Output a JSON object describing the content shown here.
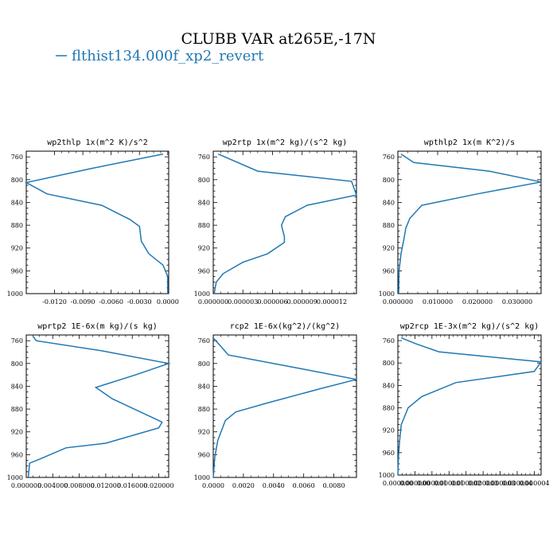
{
  "figure": {
    "title": "CLUBB VAR at265E,-17N",
    "legend_label": "flthist134.000f_xp2_revert",
    "line_color": "#1f77b4"
  },
  "chart_data": [
    {
      "type": "line",
      "title": "wp2thlp  1x(m^2 K)/s^2",
      "xlim": [
        -0.015,
        0.0001
      ],
      "ylim": [
        1000,
        750
      ],
      "xticks": [
        -0.012,
        -0.009,
        -0.006,
        -0.003,
        0.0
      ],
      "xtick_labels": [
        "-0.0120",
        "-0.0090",
        "-0.0060",
        "-0.0030",
        "0.0000"
      ],
      "yticks": [
        760,
        800,
        840,
        880,
        920,
        960,
        1000
      ],
      "x": [
        -0.0005,
        -0.008,
        -0.015,
        -0.0128,
        -0.007,
        -0.004,
        -0.003,
        -0.0028,
        -0.002,
        -0.0005,
        0.0,
        0.0
      ],
      "y": [
        755,
        780,
        805,
        825,
        845,
        870,
        882,
        908,
        930,
        950,
        970,
        1000
      ]
    },
    {
      "type": "line",
      "title": "wp2rtp  1x(m^2 kg)/(s^2 kg)",
      "xlim": [
        0.0,
        1.45e-05
      ],
      "ylim": [
        1000,
        750
      ],
      "xticks": [
        0.0,
        3e-06,
        6e-06,
        9e-06,
        1.2e-05
      ],
      "xtick_labels": [
        "0.000000",
        "0.000003",
        "0.000006",
        "0.000009",
        "0.000012"
      ],
      "yticks": [
        760,
        800,
        840,
        880,
        920,
        960,
        1000
      ],
      "x": [
        5e-07,
        4.5e-06,
        1.4e-05,
        1.45e-05,
        9.5e-06,
        7.3e-06,
        6.9e-06,
        7.2e-06,
        7.2e-06,
        5.5e-06,
        3e-06,
        1e-06,
        3e-07,
        1e-07
      ],
      "y": [
        755,
        785,
        803,
        827,
        845,
        865,
        880,
        900,
        910,
        930,
        945,
        965,
        980,
        1000
      ]
    },
    {
      "type": "line",
      "title": "wpthlp2  1x(m K^2)/s",
      "xlim": [
        0.0,
        0.036
      ],
      "ylim": [
        1000,
        750
      ],
      "xticks": [
        0.0,
        0.01,
        0.02,
        0.03
      ],
      "xtick_labels": [
        "0.000000",
        "0.010000",
        "0.020000",
        "0.030000"
      ],
      "yticks": [
        760,
        800,
        840,
        880,
        920,
        960,
        1000
      ],
      "x": [
        0.0008,
        0.004,
        0.023,
        0.036,
        0.02,
        0.006,
        0.003,
        0.002,
        0.0015,
        0.0008,
        0.0003,
        0.0002
      ],
      "y": [
        755,
        770,
        785,
        804,
        825,
        845,
        868,
        885,
        905,
        930,
        960,
        1000
      ]
    },
    {
      "type": "line",
      "title": "wprtp2  1E-6x(m kg)/(s kg)",
      "xlim": [
        0.0,
        0.0215
      ],
      "ylim": [
        1000,
        750
      ],
      "xticks": [
        0.0,
        0.004,
        0.008,
        0.012,
        0.016,
        0.02
      ],
      "xtick_labels": [
        "0.000000",
        "0.004000",
        "0.008000",
        "0.012000",
        "0.016000",
        "0.020000"
      ],
      "yticks": [
        760,
        800,
        840,
        880,
        920,
        960,
        1000
      ],
      "x": [
        0.001,
        0.0015,
        0.0115,
        0.0215,
        0.0165,
        0.0105,
        0.013,
        0.0205,
        0.02,
        0.012,
        0.006,
        0.002,
        0.0005,
        0.0003
      ],
      "y": [
        752,
        760,
        778,
        800,
        820,
        842,
        862,
        903,
        913,
        940,
        948,
        968,
        975,
        1000
      ]
    },
    {
      "type": "line",
      "title": "rcp2  1E-6x(kg^2)/(kg^2)",
      "xlim": [
        0.0,
        0.0095
      ],
      "ylim": [
        1000,
        750
      ],
      "xticks": [
        0.0,
        0.002,
        0.004,
        0.006,
        0.008
      ],
      "xtick_labels": [
        "0.0000",
        "0.0020",
        "0.0040",
        "0.0060",
        "0.0080"
      ],
      "yticks": [
        760,
        800,
        840,
        880,
        920,
        960,
        1000
      ],
      "x": [
        0.0,
        0.0005,
        0.001,
        0.006,
        0.0095,
        0.007,
        0.0035,
        0.0015,
        0.0008,
        0.0003,
        0.0001,
        0.0
      ],
      "y": [
        755,
        770,
        785,
        810,
        828,
        845,
        870,
        885,
        900,
        935,
        965,
        1000
      ]
    },
    {
      "type": "line",
      "title": "wp2rcp  1E-3x(m^2 kg)/(s^2 kg)",
      "xlim": [
        0.0,
        4.2e-06
      ],
      "ylim": [
        1000,
        750
      ],
      "xticks": [
        0.0,
        5e-07,
        1e-06,
        1.5e-06,
        2e-06,
        2.5e-06,
        3e-06,
        3.5e-06,
        4e-06
      ],
      "xtick_labels": [
        "0.000000",
        "0.000000",
        "0.000001",
        "0.000001",
        "0.000002",
        "0.000003",
        "0.000003",
        "0.000004",
        "0.000004"
      ],
      "yticks": [
        760,
        800,
        840,
        880,
        920,
        960,
        1000
      ],
      "x": [
        1e-07,
        5e-07,
        1.2e-06,
        4.2e-06,
        4e-06,
        1.7e-06,
        7e-07,
        3e-07,
        1e-07,
        5e-08,
        2e-08,
        0.0
      ],
      "y": [
        755,
        765,
        780,
        798,
        815,
        835,
        860,
        880,
        910,
        940,
        965,
        1000
      ]
    }
  ]
}
